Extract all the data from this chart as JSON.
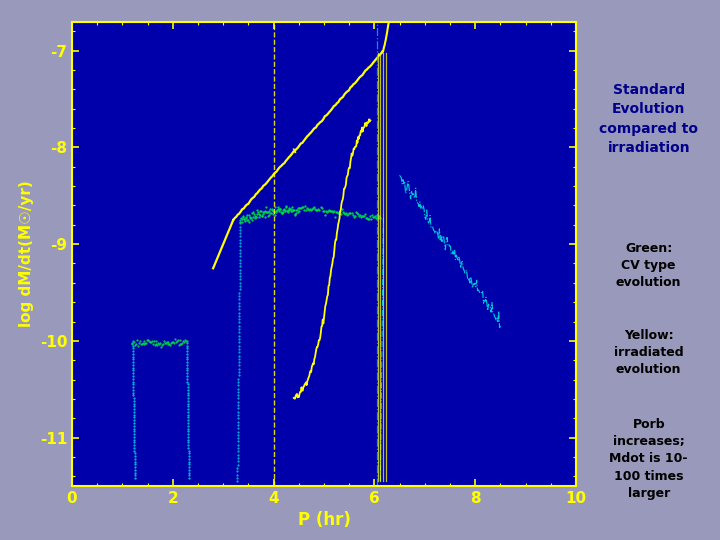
{
  "bg_color": "#0000AA",
  "xlim": [
    0,
    10
  ],
  "ylim": [
    -11.5,
    -6.7
  ],
  "xlabel": "P (hr)",
  "ylabel": "log dM/dt(M☉/yr)",
  "xticks": [
    0,
    2,
    4,
    6,
    8,
    10
  ],
  "yticks": [
    -11,
    -10,
    -9,
    -8,
    -7
  ],
  "ytick_labels": [
    "-11",
    "-10",
    "-9",
    "-8",
    "-7"
  ],
  "title_text": "Standard\nEvolution\ncompared to\nirradiation",
  "title_bg": "#FFB300",
  "title_text_color": "#00008B",
  "legend1_text": "Green:\nCV type\nevolution",
  "legend1_bg": "#AAAAEE",
  "legend2_text": "Yellow:\nirradiated\nevolution",
  "legend2_bg": "#FFFF99",
  "legend3_text": "Porb\nincreases;\nMdot is 10-\n100 times\nlarger",
  "legend3_bg": "#FFFF99",
  "green_color": "#00DD44",
  "yellow_color": "#FFFF00",
  "cyan_color": "#00CCDD",
  "tick_color": "#FFFF00",
  "axis_color": "#FFFF00",
  "fig_bg": "#9999BB"
}
